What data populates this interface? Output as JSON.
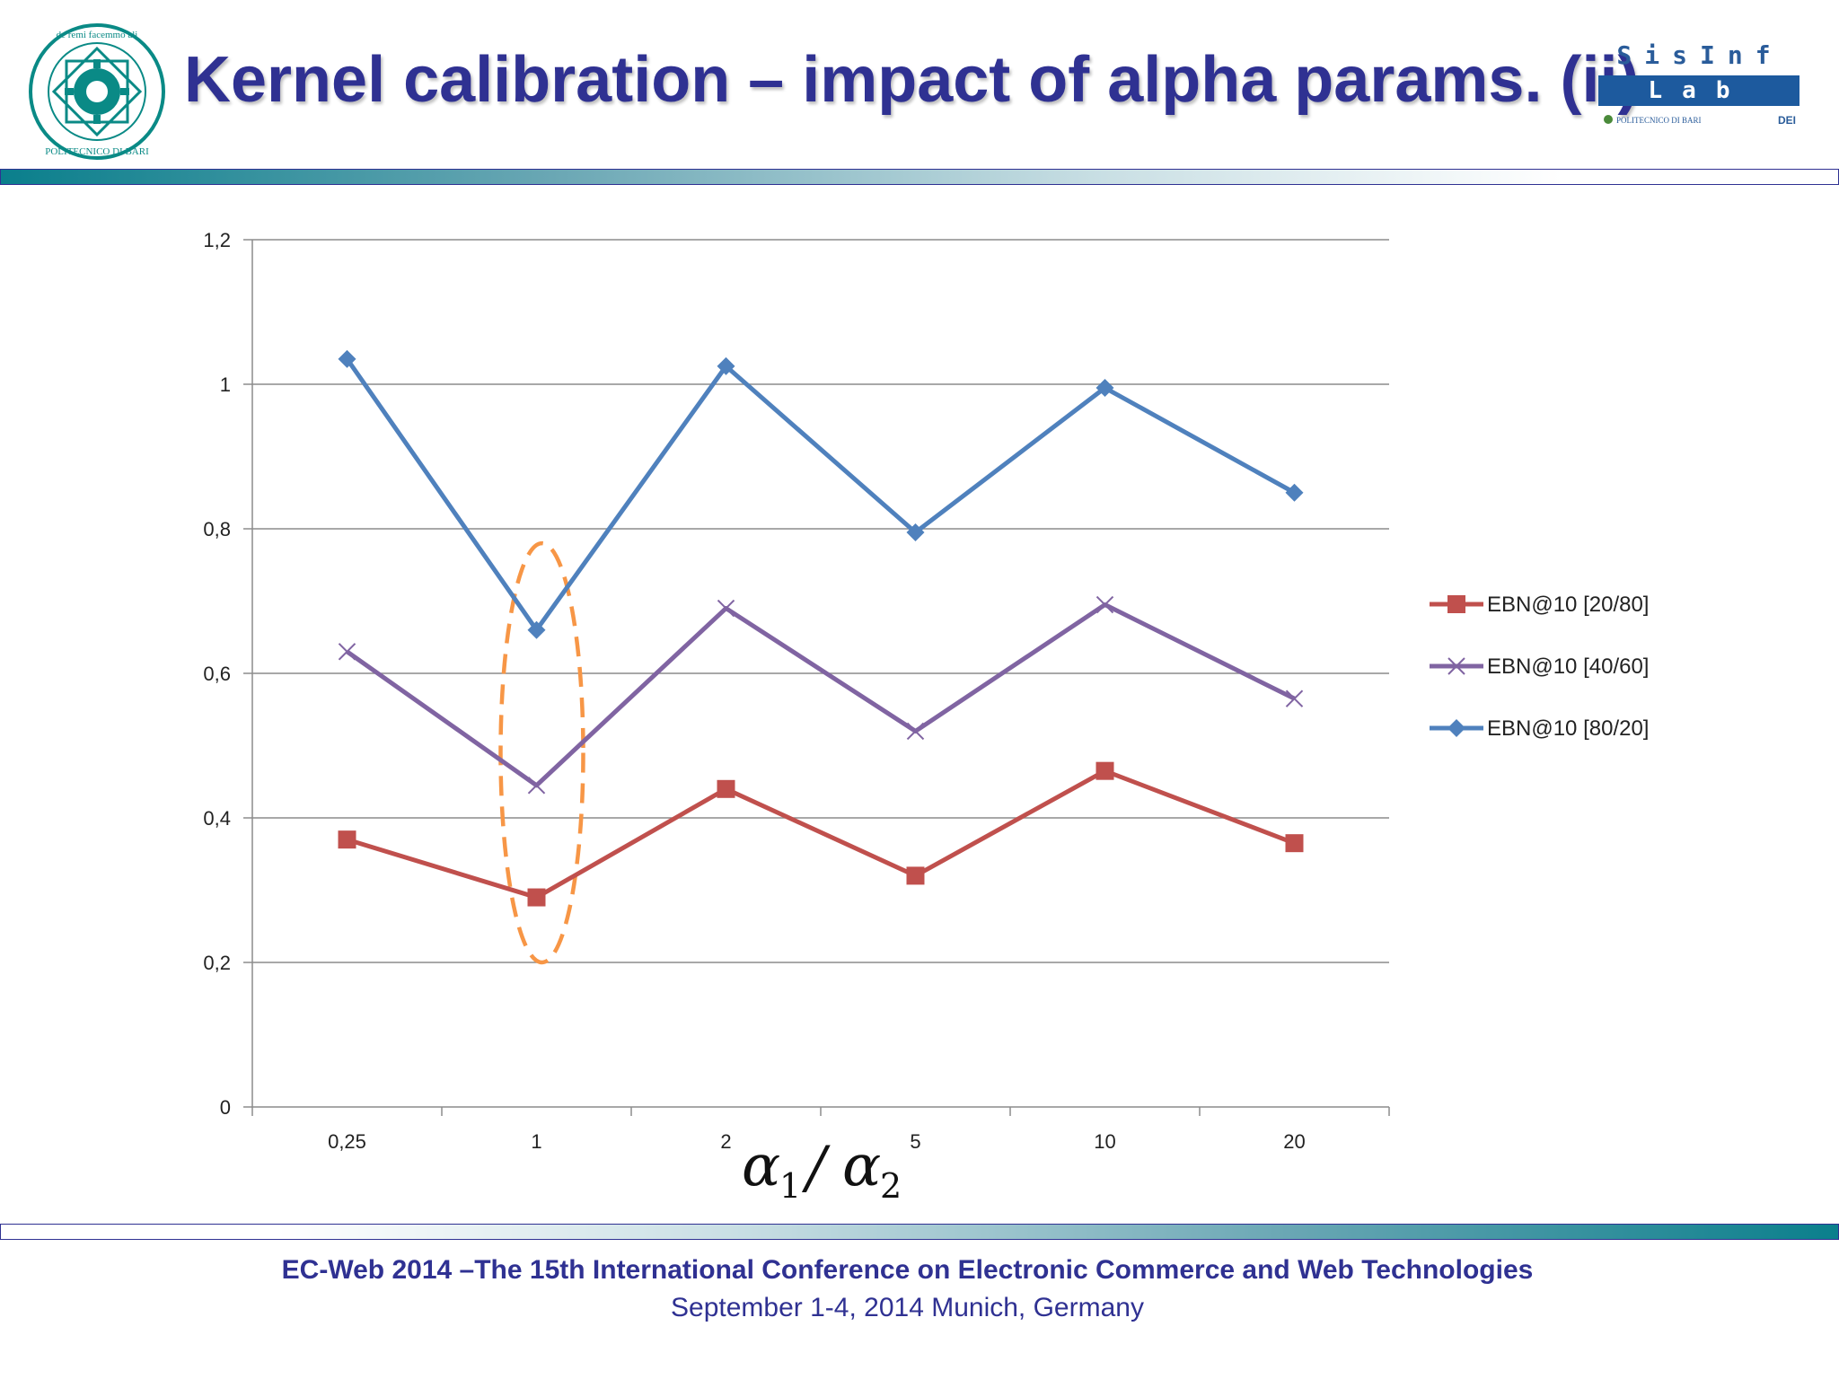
{
  "slide": {
    "title": "Kernel calibration – impact of alpha params. (ii)",
    "footer_line1": "EC-Web 2014 –The 15th International Conference on Electronic Commerce and Web Technologies",
    "footer_line2": "September 1-4, 2014   Munich, Germany"
  },
  "logos": {
    "left": {
      "icon": "politecnico-di-bari-seal",
      "ring_text_top": "de remi facemmo ali",
      "ring_text_bottom": "POLITECNICO DI BARI",
      "color": "#0a8a86"
    },
    "right": {
      "top_text": "SisInf",
      "bar_text": "Lab",
      "sub_left": "POLITECNICO DI BARI",
      "sub_right": "DEI",
      "color": "#1d5a9e"
    }
  },
  "chart_data": {
    "type": "line",
    "categories": [
      "0,25",
      "1",
      "2",
      "5",
      "10",
      "20"
    ],
    "ylim": [
      0,
      1.2
    ],
    "yticks": [
      "0",
      "0,2",
      "0,4",
      "0,6",
      "0,8",
      "1",
      "1,2"
    ],
    "grid": true,
    "legend_position": "right",
    "xlabel": {
      "a": "α",
      "a_sub": "1",
      "slash": "/",
      "b": "α",
      "b_sub": "2"
    },
    "series": [
      {
        "name": "EBN@10 [20/80]",
        "values": [
          0.37,
          0.29,
          0.44,
          0.32,
          0.465,
          0.365
        ],
        "color": "#c0504d",
        "marker": "square"
      },
      {
        "name": "EBN@10 [40/60]",
        "values": [
          0.63,
          0.445,
          0.69,
          0.52,
          0.695,
          0.565
        ],
        "color": "#8064a2",
        "marker": "x"
      },
      {
        "name": "EBN@10 [80/20]",
        "values": [
          1.035,
          0.66,
          1.025,
          0.795,
          0.995,
          0.85
        ],
        "color": "#4f81bd",
        "marker": "diamond"
      }
    ],
    "annotation": {
      "shape": "dashed-ellipse",
      "category": "1",
      "y_range": [
        0.2,
        0.78
      ],
      "color": "#f79646"
    }
  }
}
